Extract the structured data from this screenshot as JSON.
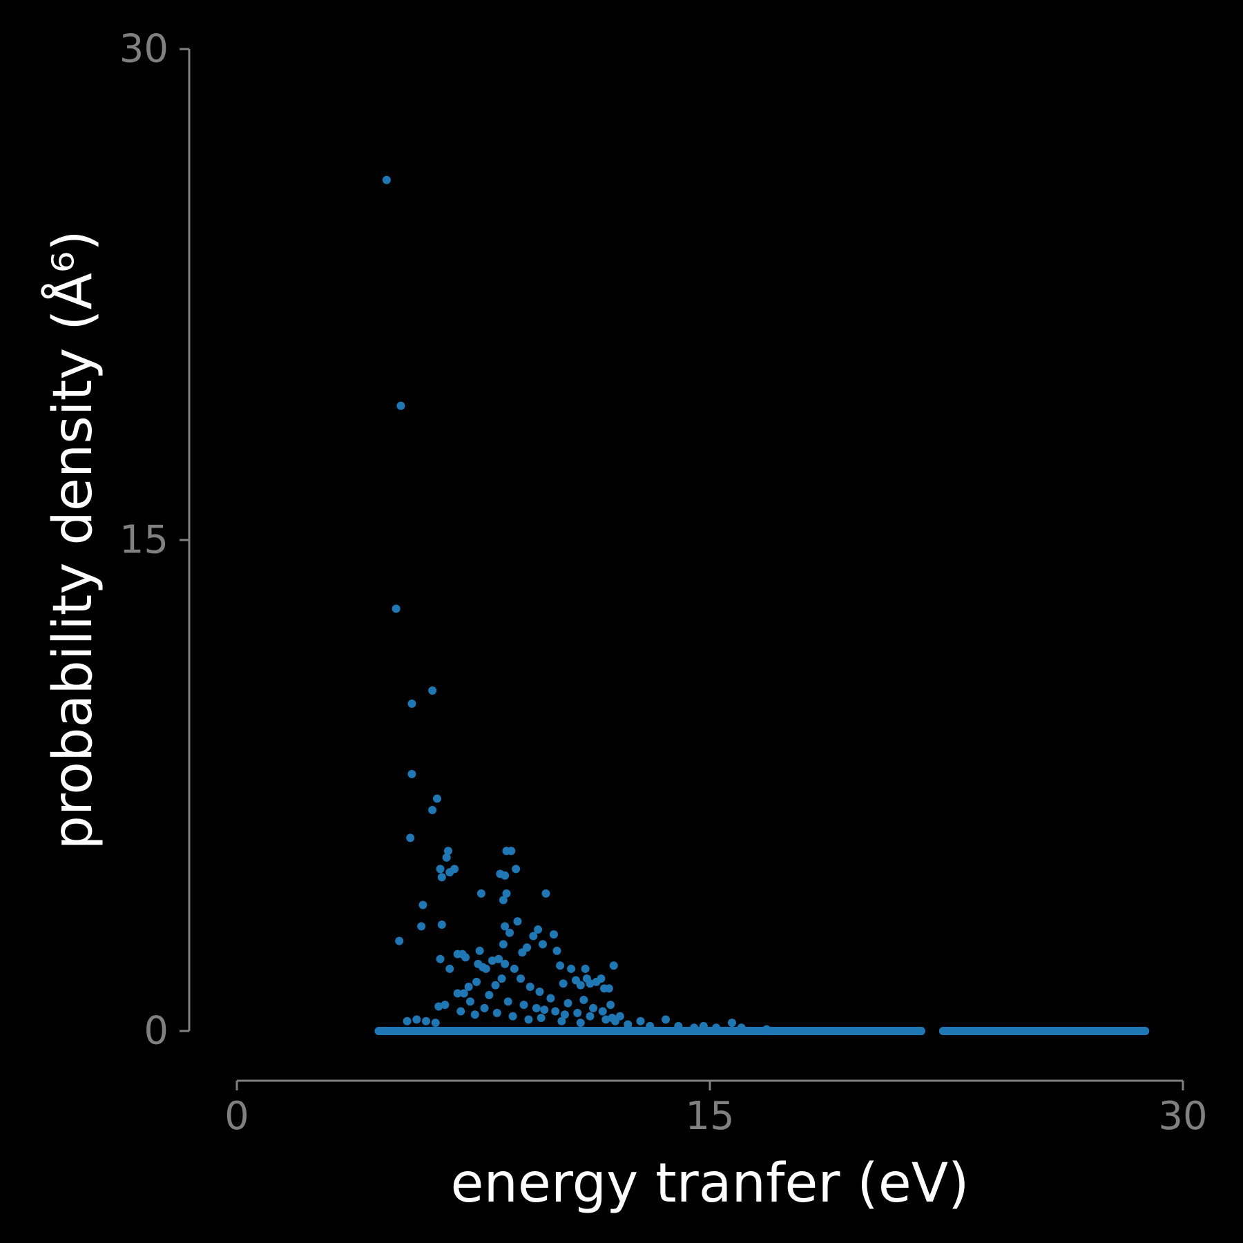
{
  "colors": {
    "background": "#000000",
    "axis": "#808080",
    "tick_label": "#808080",
    "axis_title": "#ffffff",
    "points": "#1f77b4"
  },
  "chart_data": {
    "type": "scatter",
    "xlabel": "energy tranfer (eV)",
    "ylabel": "probability density (Å⁶)",
    "xlim": [
      0,
      30
    ],
    "ylim": [
      0,
      30
    ],
    "xticks": [
      0,
      15,
      30
    ],
    "yticks": [
      0,
      15,
      30
    ],
    "xtick_labels": [
      "0",
      "15",
      "30"
    ],
    "ytick_labels": [
      "0",
      "15",
      "30"
    ],
    "grid": false,
    "legend": "none",
    "series": [
      {
        "points": [
          [
            4.75,
            26.0
          ],
          [
            5.2,
            19.1
          ],
          [
            5.05,
            12.9
          ],
          [
            5.55,
            10.0
          ],
          [
            6.2,
            10.4
          ],
          [
            5.55,
            7.85
          ],
          [
            6.35,
            7.1
          ],
          [
            6.2,
            6.75
          ],
          [
            5.5,
            5.9
          ],
          [
            6.7,
            5.5
          ],
          [
            6.65,
            5.3
          ],
          [
            6.45,
            4.95
          ],
          [
            6.5,
            4.7
          ],
          [
            6.9,
            4.95
          ],
          [
            6.75,
            4.85
          ],
          [
            5.9,
            3.85
          ],
          [
            5.85,
            3.2
          ],
          [
            6.5,
            3.25
          ],
          [
            5.15,
            2.75
          ],
          [
            6.45,
            2.2
          ],
          [
            6.75,
            1.9
          ],
          [
            7.0,
            2.35
          ],
          [
            7.15,
            2.35
          ],
          [
            7.25,
            2.25
          ],
          [
            6.6,
            0.8
          ],
          [
            6.4,
            0.75
          ],
          [
            7.0,
            1.15
          ],
          [
            7.2,
            1.15
          ],
          [
            7.35,
            1.35
          ],
          [
            7.6,
            1.5
          ],
          [
            7.7,
            2.45
          ],
          [
            7.65,
            2.05
          ],
          [
            7.8,
            1.95
          ],
          [
            7.9,
            1.9
          ],
          [
            8.1,
            2.15
          ],
          [
            8.3,
            2.2
          ],
          [
            8.5,
            2.05
          ],
          [
            8.0,
            1.1
          ],
          [
            8.2,
            1.4
          ],
          [
            8.4,
            1.6
          ],
          [
            7.75,
            4.2
          ],
          [
            8.35,
            4.8
          ],
          [
            8.5,
            4.75
          ],
          [
            8.45,
            4.0
          ],
          [
            8.55,
            4.2
          ],
          [
            8.5,
            3.2
          ],
          [
            8.65,
            3.0
          ],
          [
            8.45,
            2.65
          ],
          [
            8.55,
            5.5
          ],
          [
            8.7,
            5.5
          ],
          [
            8.85,
            4.95
          ],
          [
            8.9,
            3.35
          ],
          [
            9.05,
            2.4
          ],
          [
            9.2,
            2.55
          ],
          [
            9.4,
            2.9
          ],
          [
            9.55,
            3.1
          ],
          [
            9.7,
            2.65
          ],
          [
            9.8,
            4.2
          ],
          [
            10.05,
            2.95
          ],
          [
            10.15,
            2.45
          ],
          [
            10.25,
            2.0
          ],
          [
            10.35,
            1.45
          ],
          [
            10.6,
            1.9
          ],
          [
            10.75,
            1.55
          ],
          [
            10.9,
            1.4
          ],
          [
            11.05,
            1.9
          ],
          [
            11.1,
            1.6
          ],
          [
            11.2,
            1.45
          ],
          [
            11.4,
            1.5
          ],
          [
            11.55,
            1.6
          ],
          [
            11.65,
            1.3
          ],
          [
            11.8,
            1.3
          ],
          [
            11.95,
            2.0
          ],
          [
            11.85,
            0.8
          ],
          [
            12.15,
            0.45
          ],
          [
            8.8,
            1.9
          ],
          [
            9.0,
            1.6
          ],
          [
            9.3,
            1.35
          ],
          [
            9.6,
            1.2
          ],
          [
            9.95,
            1.0
          ],
          [
            10.5,
            0.85
          ],
          [
            11.0,
            0.95
          ],
          [
            11.3,
            0.7
          ],
          [
            11.6,
            0.6
          ],
          [
            11.9,
            0.4
          ],
          [
            8.6,
            0.9
          ],
          [
            9.1,
            0.8
          ],
          [
            9.5,
            0.7
          ],
          [
            9.75,
            0.65
          ],
          [
            10.1,
            0.6
          ],
          [
            10.4,
            0.5
          ],
          [
            10.8,
            0.55
          ],
          [
            11.2,
            0.45
          ],
          [
            11.7,
            0.35
          ],
          [
            12.0,
            0.3
          ],
          [
            7.4,
            0.9
          ],
          [
            7.1,
            0.6
          ],
          [
            7.55,
            0.5
          ],
          [
            7.85,
            0.7
          ],
          [
            8.25,
            0.55
          ],
          [
            8.75,
            0.45
          ],
          [
            9.25,
            0.35
          ],
          [
            9.65,
            0.4
          ],
          [
            10.3,
            0.3
          ],
          [
            10.9,
            0.25
          ],
          [
            5.4,
            0.3
          ],
          [
            5.7,
            0.35
          ],
          [
            6.0,
            0.3
          ],
          [
            6.3,
            0.25
          ],
          [
            12.4,
            0.2
          ],
          [
            12.8,
            0.3
          ],
          [
            13.1,
            0.15
          ],
          [
            13.6,
            0.35
          ],
          [
            14.0,
            0.15
          ],
          [
            14.5,
            0.1
          ],
          [
            14.8,
            0.15
          ],
          [
            15.2,
            0.1
          ],
          [
            15.7,
            0.25
          ],
          [
            16.0,
            0.1
          ],
          [
            16.8,
            0.05
          ],
          [
            4.5,
            0.0
          ],
          [
            5.0,
            0.0
          ],
          [
            5.5,
            0.0
          ],
          [
            6.0,
            0.0
          ],
          [
            6.5,
            0.0
          ],
          [
            7.0,
            0.0
          ],
          [
            7.5,
            0.0
          ],
          [
            8.0,
            0.0
          ],
          [
            8.5,
            0.0
          ],
          [
            9.0,
            0.0
          ],
          [
            9.5,
            0.0
          ],
          [
            10.0,
            0.0
          ],
          [
            10.5,
            0.0
          ],
          [
            11.0,
            0.0
          ],
          [
            11.5,
            0.0
          ],
          [
            12.0,
            0.0
          ],
          [
            12.5,
            0.0
          ],
          [
            13.0,
            0.0
          ],
          [
            13.5,
            0.0
          ],
          [
            14.0,
            0.0
          ],
          [
            14.5,
            0.0
          ],
          [
            15.0,
            0.0
          ],
          [
            15.5,
            0.0
          ],
          [
            16.0,
            0.0
          ],
          [
            16.5,
            0.0
          ],
          [
            17.0,
            0.0
          ],
          [
            17.5,
            0.0
          ],
          [
            18.0,
            0.0
          ],
          [
            18.5,
            0.0
          ],
          [
            19.0,
            0.0
          ],
          [
            19.5,
            0.0
          ],
          [
            20.0,
            0.0
          ],
          [
            20.5,
            0.0
          ],
          [
            21.0,
            0.0
          ],
          [
            21.5,
            0.0
          ],
          [
            21.7,
            0.0
          ],
          [
            22.4,
            0.0
          ],
          [
            22.9,
            0.0
          ],
          [
            23.4,
            0.0
          ],
          [
            23.9,
            0.0
          ],
          [
            24.4,
            0.0
          ],
          [
            24.9,
            0.0
          ],
          [
            25.4,
            0.0
          ],
          [
            25.9,
            0.0
          ],
          [
            26.4,
            0.0
          ],
          [
            26.9,
            0.0
          ],
          [
            27.4,
            0.0
          ],
          [
            27.9,
            0.0
          ],
          [
            28.4,
            0.0
          ],
          [
            28.8,
            0.0
          ]
        ]
      }
    ]
  }
}
